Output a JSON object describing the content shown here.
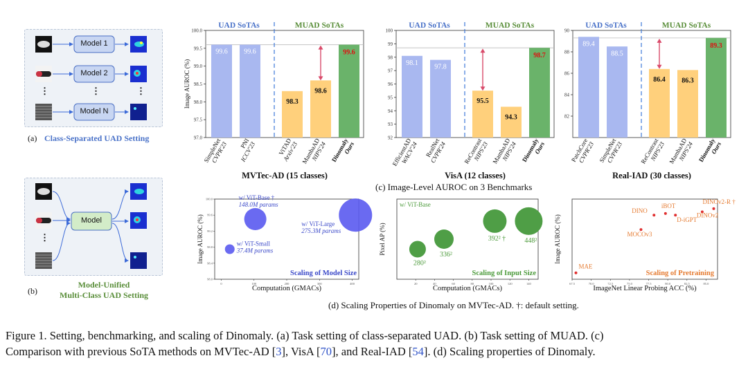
{
  "panel_a": {
    "models": [
      "Model 1",
      "Model 2",
      "Model N"
    ],
    "dots": "⋮",
    "label": "(a)",
    "title": "Class-Separated UAD Setting"
  },
  "panel_b": {
    "model": "Model",
    "label": "(b)",
    "title_line1": "Model-Unified",
    "title_line2": "Multi-Class UAD Setting"
  },
  "panel_c": {
    "ylabel": "Image AUROC (%)",
    "caption": "(c) Image-Level AUROC on 3 Benchmarks",
    "uad_header": "UAD SoTAs",
    "muad_header": "MUAD SoTAs",
    "colors": {
      "uad": "#a9b8f0",
      "muad": "#ffd07c",
      "ours": "#6ab36a",
      "arrow": "#d94a6a",
      "divider": "#3c78d8"
    }
  },
  "chart_data": [
    {
      "type": "bar",
      "title": "MVTec-AD (15 classes)",
      "ylabel": "Image AUROC (%)",
      "ylim": [
        97.0,
        100.0
      ],
      "yticks": [
        "97.0",
        "97.5",
        "98.0",
        "98.5",
        "99.0",
        "99.5",
        "100.0"
      ],
      "categories": [
        {
          "name": "SimpleNet",
          "venue": "CVPR'23",
          "group": "uad",
          "value": 99.6,
          "label": "99.6"
        },
        {
          "name": "PNI",
          "venue": "ICCV'23",
          "group": "uad",
          "value": 99.6,
          "label": "99.6"
        },
        {
          "name": "ViTAD",
          "venue": "Arxiv'23",
          "group": "muad",
          "value": 98.3,
          "label": "98.3"
        },
        {
          "name": "MambaAD",
          "venue": "NIPS'24",
          "group": "muad",
          "value": 98.6,
          "label": "98.6"
        },
        {
          "name": "Dinomaly",
          "venue": "Ours",
          "group": "ours",
          "value": 99.6,
          "label": "99.6"
        }
      ]
    },
    {
      "type": "bar",
      "title": "VisA (12 classes)",
      "ylim": [
        92,
        100
      ],
      "yticks": [
        "92",
        "93",
        "94",
        "95",
        "96",
        "97",
        "98",
        "99",
        "100"
      ],
      "categories": [
        {
          "name": "EfficientAD",
          "venue": "WACV'24",
          "group": "uad",
          "value": 98.1,
          "label": "98.1"
        },
        {
          "name": "RealNet",
          "venue": "CVPR'24",
          "group": "uad",
          "value": 97.8,
          "label": "97.8"
        },
        {
          "name": "ReContrast",
          "venue": "NIPS'23",
          "group": "muad",
          "value": 95.5,
          "label": "95.5"
        },
        {
          "name": "MambaAD",
          "venue": "NIPS'24",
          "group": "muad",
          "value": 94.3,
          "label": "94.3"
        },
        {
          "name": "Dinomaly",
          "venue": "Ours",
          "group": "ours",
          "value": 98.7,
          "label": "98.7"
        }
      ]
    },
    {
      "type": "bar",
      "title": "Real-IAD (30 classes)",
      "ylim": [
        80,
        90
      ],
      "yticks": [
        "82",
        "84",
        "86",
        "88",
        "90"
      ],
      "categories": [
        {
          "name": "PatchCore",
          "venue": "CVPR'23",
          "group": "uad",
          "value": 89.4,
          "label": "89.4"
        },
        {
          "name": "SimpleNet",
          "venue": "CVPR'23",
          "group": "uad",
          "value": 88.5,
          "label": "88.5"
        },
        {
          "name": "ReContrast",
          "venue": "NIPS'23",
          "group": "muad",
          "value": 86.4,
          "label": "86.4"
        },
        {
          "name": "MambaAD",
          "venue": "NIPS'24",
          "group": "muad",
          "value": 86.3,
          "label": "86.3"
        },
        {
          "name": "Dinomaly",
          "venue": "Ours",
          "group": "ours",
          "value": 89.3,
          "label": "89.3"
        }
      ]
    },
    {
      "type": "scatter",
      "title": "Scaling of Model Size",
      "xlabel": "Computation (GMACs)",
      "ylabel": "Image AUROC (%)",
      "xlim": [
        -20,
        420
      ],
      "ylim": [
        98.0,
        100.0
      ],
      "yticks": [
        "98.0",
        "98.4",
        "98.8",
        "99.2",
        "99.6",
        "100.0"
      ],
      "xticks": [
        "0",
        "100",
        "200",
        "300",
        "400"
      ],
      "points": [
        {
          "x": 26,
          "y": 98.75,
          "size": 7,
          "label1": "w/ ViT-Small",
          "label2": "37.4M params"
        },
        {
          "x": 104,
          "y": 99.5,
          "size": 16,
          "label1": "w/ ViT-Base †",
          "label2": "148.0M params"
        },
        {
          "x": 410,
          "y": 99.6,
          "size": 24,
          "label1": "w/ ViT-Large",
          "label2": "275.3M params"
        }
      ]
    },
    {
      "type": "scatter",
      "title": "Scaling of Input Size",
      "subtitle": "w/ ViT-Base",
      "xlabel": "Computation (GMACs)",
      "ylabel": "Pixel AP (%)",
      "xlim": [
        0,
        150
      ],
      "ylim": [
        68,
        72
      ],
      "xticks": [
        "20",
        "40",
        "60",
        "80",
        "100",
        "120",
        "140"
      ],
      "points": [
        {
          "x": 22,
          "y": 69.5,
          "size": 12,
          "label": "280²"
        },
        {
          "x": 50,
          "y": 70.0,
          "size": 14,
          "label": "336²"
        },
        {
          "x": 104,
          "y": 70.9,
          "size": 17,
          "label": "392² †"
        },
        {
          "x": 140,
          "y": 70.9,
          "size": 20,
          "label": "448²"
        }
      ]
    },
    {
      "type": "scatter",
      "title": "Scaling of Pretraining",
      "xlabel": "ImageNet Linear Probing ACC (%)",
      "ylabel": "Image AUROC (%)",
      "xlim": [
        67.5,
        86.5
      ],
      "ylim": [
        97.5,
        100.0
      ],
      "xticks": [
        "67.5",
        "70.0",
        "72.5",
        "75.0",
        "77.5",
        "80.0",
        "82.5",
        "85.0"
      ],
      "points": [
        {
          "x": 68.0,
          "y": 97.7,
          "label": "MAE"
        },
        {
          "x": 76.5,
          "y": 99.05,
          "label": "MOCOv3"
        },
        {
          "x": 78.2,
          "y": 99.5,
          "label": "DINO"
        },
        {
          "x": 79.7,
          "y": 99.55,
          "label": "iBOT"
        },
        {
          "x": 81.0,
          "y": 99.5,
          "label": "D-iGPT"
        },
        {
          "x": 84.5,
          "y": 99.6,
          "label": "DINOv2"
        },
        {
          "x": 86.0,
          "y": 99.7,
          "label": "DINOv2-R †"
        }
      ]
    }
  ],
  "panel_d": {
    "caption": "(d) Scaling Properties of Dinomaly on MVTec-AD. †: default setting."
  },
  "figure_caption": {
    "p1": "Figure 1.  Setting, benchmarking, and scaling of Dinomaly.  (a) Task setting of class-separated UAD. (b) Task setting of MUAD. (c)",
    "p2a": "Comparison with previous SoTA methods on MVTec-AD [",
    "c1": "3",
    "p2b": "], VisA [",
    "c2": "70",
    "p2c": "], and Real-IAD [",
    "c3": "54",
    "p2d": "]. (d) Scaling properties of Dinomaly."
  }
}
